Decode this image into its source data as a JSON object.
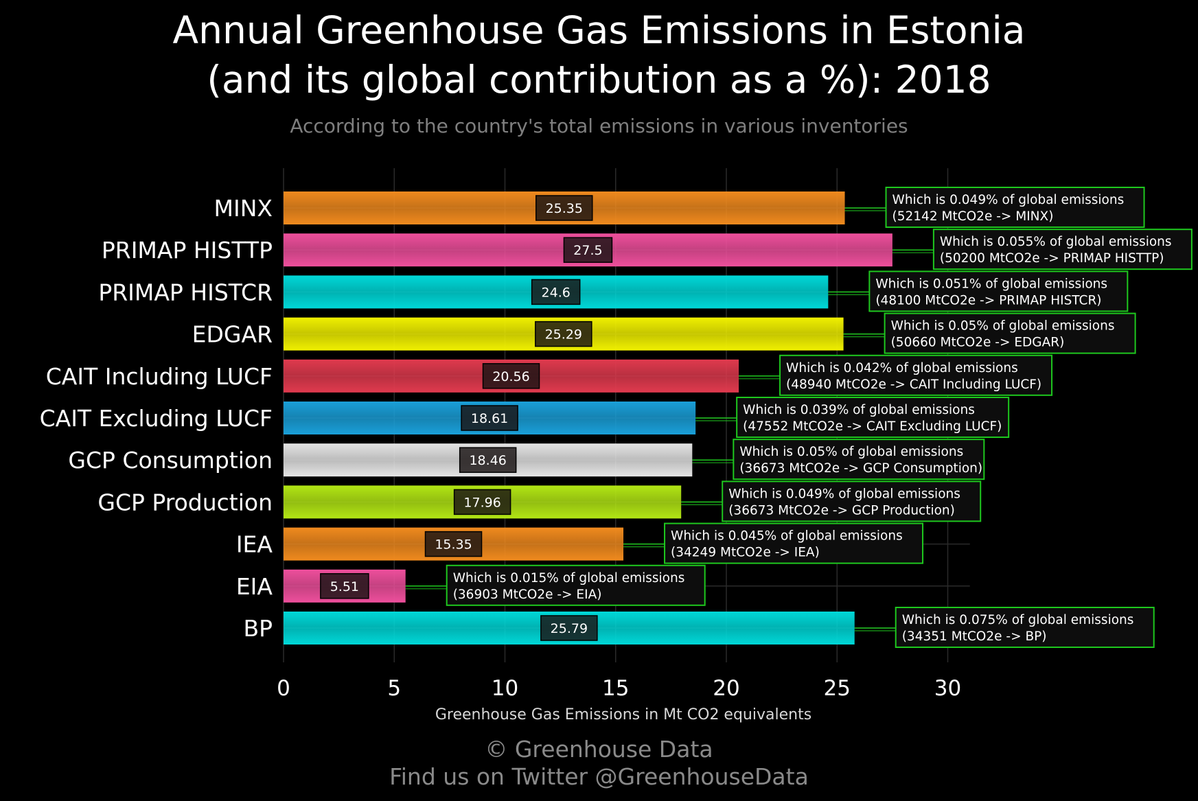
{
  "header": {
    "title_line1": "Annual Greenhouse Gas Emissions in Estonia",
    "title_line2": "(and its global contribution as a %): 2018",
    "subtitle": "According to the country's total emissions in various inventories"
  },
  "footer": {
    "line1": "© Greenhouse Data",
    "line2": "Find us on Twitter @GreenhouseData"
  },
  "chart_data": {
    "type": "bar",
    "orientation": "horizontal",
    "title": "Annual Greenhouse Gas Emissions in Estonia (and its global contribution as a %): 2018",
    "subtitle": "According to the country's total emissions in various inventories",
    "xlabel": "Greenhouse Gas Emissions in Mt CO2 equivalents",
    "ylabel": "",
    "xlim": [
      0,
      31
    ],
    "xticks": [
      0,
      5,
      10,
      15,
      20,
      25,
      30
    ],
    "grid": true,
    "categories": [
      "MINX",
      "PRIMAP HISTTP",
      "PRIMAP HISTCR",
      "EDGAR",
      "CAIT Including LUCF",
      "CAIT Excluding LUCF",
      "GCP Consumption",
      "GCP Production",
      "IEA",
      "EIA",
      "BP"
    ],
    "values": [
      25.35,
      27.5,
      24.6,
      25.29,
      20.56,
      18.61,
      18.46,
      17.96,
      15.35,
      5.51,
      25.79
    ],
    "value_labels": [
      "25.35",
      "27.5",
      "24.6",
      "25.29",
      "20.56",
      "18.61",
      "18.46",
      "17.96",
      "15.35",
      "5.51",
      "25.79"
    ],
    "colors": [
      "#f08a1e",
      "#ee4f9c",
      "#00d8d8",
      "#f0f000",
      "#e03a4e",
      "#1a9fd8",
      "#e4e4e4",
      "#b2e614",
      "#f08a1e",
      "#ee4f9c",
      "#00d8d8"
    ],
    "annotations": [
      {
        "line1": "Which is 0.049% of global emissions",
        "line2": "(52142 MtCO2e -> MINX)"
      },
      {
        "line1": "Which is 0.055% of global emissions",
        "line2": "(50200 MtCO2e -> PRIMAP HISTTP)"
      },
      {
        "line1": "Which is 0.051% of global emissions",
        "line2": "(48100 MtCO2e -> PRIMAP HISTCR)"
      },
      {
        "line1": "Which is 0.05% of global emissions",
        "line2": "(50660 MtCO2e -> EDGAR)"
      },
      {
        "line1": "Which is 0.042% of global emissions",
        "line2": "(48940 MtCO2e -> CAIT Including LUCF)"
      },
      {
        "line1": "Which is 0.039% of global emissions",
        "line2": "(47552 MtCO2e -> CAIT Excluding LUCF)"
      },
      {
        "line1": "Which is 0.05% of global emissions",
        "line2": "(36673 MtCO2e -> GCP Consumption)"
      },
      {
        "line1": "Which is 0.049% of global emissions",
        "line2": "(36673 MtCO2e -> GCP Production)"
      },
      {
        "line1": "Which is 0.045% of global emissions",
        "line2": "(34249 MtCO2e -> IEA)"
      },
      {
        "line1": "Which is 0.015% of global emissions",
        "line2": "(36903 MtCO2e -> EIA)"
      },
      {
        "line1": "Which is 0.075% of global emissions",
        "line2": "(34351 MtCO2e -> BP)"
      }
    ]
  },
  "style": {
    "background": "#000000",
    "annotation_border": "#1ec81e",
    "annotation_fill": "#0d0d0d",
    "gridline": "#2a2a2a"
  }
}
